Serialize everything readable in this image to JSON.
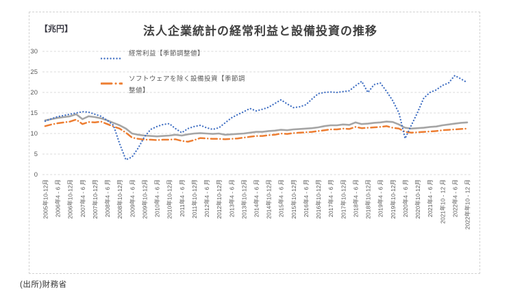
{
  "page": {
    "source_note": "(出所)財務省"
  },
  "colors": {
    "axis_text": "#595959",
    "grid": "#d9d9d9",
    "title_text": "#404040",
    "chart_border": "#d2d2d2",
    "series_blue": "#4472C4",
    "series_orange": "#ED7D31",
    "series_gray": "#A5A5A5"
  },
  "chart_data": {
    "type": "line",
    "title": "法人企業統計の経常利益と設備投資の推移",
    "unit_label": "【兆円】",
    "ylim": [
      0,
      30
    ],
    "yticks": [
      "0",
      "5",
      "10",
      "15",
      "20",
      "25",
      "30"
    ],
    "grid": "horizontal dashed gridlines at every 5",
    "legend_position": "inside top-left, stacked vertically",
    "x_label_every_n_points": 2,
    "x_tick_labels": [
      "2005年10-12月",
      "2006年4 - 6 月",
      "2006年10-12月",
      "2007年4 - 6 月",
      "2007年10-12月",
      "2008年4 - 6 月",
      "2008年10-12月",
      "2009年4 - 6 月",
      "2009年10-12月",
      "2010年4 - 6 月",
      "2010年10-12月",
      "2011年4 - 6 月",
      "2011年10-12月",
      "2012年4 - 6 月",
      "2012年10-12月",
      "2013年4 - 6 月",
      "2013年10-12月",
      "2014年4 - 6 月",
      "2014年10-12月",
      "2015年4 - 6 月",
      "2015年10-12月",
      "2016年4 - 6 月",
      "2016年10-12月",
      "2017年4 - 6 月",
      "2017年10-12月",
      "2018年4 - 6 月",
      "2018年10-12月",
      "2019年4 - 6 月",
      "2019年10-12月",
      "2020年4 - 6 月",
      "2020年10-12月",
      "2021年4 - 6 月",
      "2021年10 - 12 月",
      "2022年4 - 6 月",
      "2022年年10 - 12 月"
    ],
    "series": [
      {
        "key": "gray-solid",
        "name": "",
        "in_legend": false,
        "color": "#A5A5A5",
        "style": "solid",
        "values": [
          13.2,
          13.5,
          13.8,
          14.0,
          14.2,
          14.7,
          13.5,
          14.2,
          14.0,
          13.7,
          13.2,
          12.6,
          12.0,
          11.2,
          10.0,
          9.7,
          9.5,
          9.4,
          9.3,
          9.4,
          9.5,
          9.7,
          9.5,
          9.8,
          10.0,
          10.1,
          10.0,
          9.9,
          10.0,
          9.7,
          9.8,
          9.9,
          10.0,
          10.2,
          10.4,
          10.4,
          10.6,
          10.7,
          10.9,
          10.8,
          11.0,
          11.1,
          11.2,
          11.3,
          11.5,
          11.8,
          12.0,
          12.0,
          12.2,
          12.1,
          12.7,
          12.3,
          12.4,
          12.6,
          12.7,
          12.9,
          12.8,
          12.2,
          11.4,
          11.2,
          11.3,
          11.4,
          11.6,
          11.7,
          12.0,
          12.2,
          12.4,
          12.6,
          12.7
        ]
      },
      {
        "key": "capex-ex-software",
        "name": "ソフトウェアを除く設備投資【季節調整値】",
        "in_legend": true,
        "color": "#ED7D31",
        "style": "dash-dot",
        "values": [
          11.8,
          12.2,
          12.5,
          12.7,
          12.9,
          13.4,
          12.3,
          12.8,
          12.7,
          12.9,
          12.3,
          11.7,
          11.2,
          10.2,
          9.0,
          8.7,
          8.5,
          8.5,
          8.4,
          8.5,
          8.5,
          8.6,
          8.2,
          8.0,
          8.4,
          8.9,
          8.8,
          8.7,
          8.7,
          8.6,
          8.7,
          8.8,
          9.0,
          9.2,
          9.4,
          9.4,
          9.6,
          9.7,
          10.0,
          9.9,
          10.1,
          10.2,
          10.3,
          10.4,
          10.6,
          10.8,
          11.0,
          11.0,
          11.2,
          11.1,
          11.6,
          11.3,
          11.4,
          11.5,
          11.6,
          11.8,
          11.4,
          11.2,
          10.4,
          10.2,
          10.3,
          10.4,
          10.5,
          10.6,
          10.8,
          10.9,
          11.0,
          11.1,
          11.2
        ]
      },
      {
        "key": "keijo-rieki",
        "name": "経常利益【季節調整値】",
        "in_legend": true,
        "color": "#4472C4",
        "style": "dotted",
        "values": [
          13.0,
          13.6,
          14.1,
          14.4,
          14.7,
          15.0,
          15.3,
          15.2,
          14.7,
          14.2,
          13.2,
          12.0,
          7.5,
          3.6,
          4.3,
          6.5,
          9.2,
          11.0,
          11.7,
          12.2,
          12.4,
          11.2,
          10.2,
          11.2,
          11.7,
          12.0,
          11.4,
          11.0,
          11.4,
          12.6,
          13.8,
          14.6,
          15.3,
          16.1,
          15.5,
          15.9,
          16.4,
          17.3,
          18.2,
          17.2,
          16.3,
          16.5,
          17.0,
          18.4,
          19.7,
          20.0,
          20.1,
          20.0,
          20.2,
          20.4,
          21.6,
          22.7,
          20.0,
          21.9,
          22.3,
          20.3,
          18.0,
          15.0,
          8.8,
          12.0,
          15.1,
          18.6,
          20.0,
          20.6,
          21.7,
          22.3,
          24.1,
          23.3,
          22.4
        ]
      }
    ]
  }
}
